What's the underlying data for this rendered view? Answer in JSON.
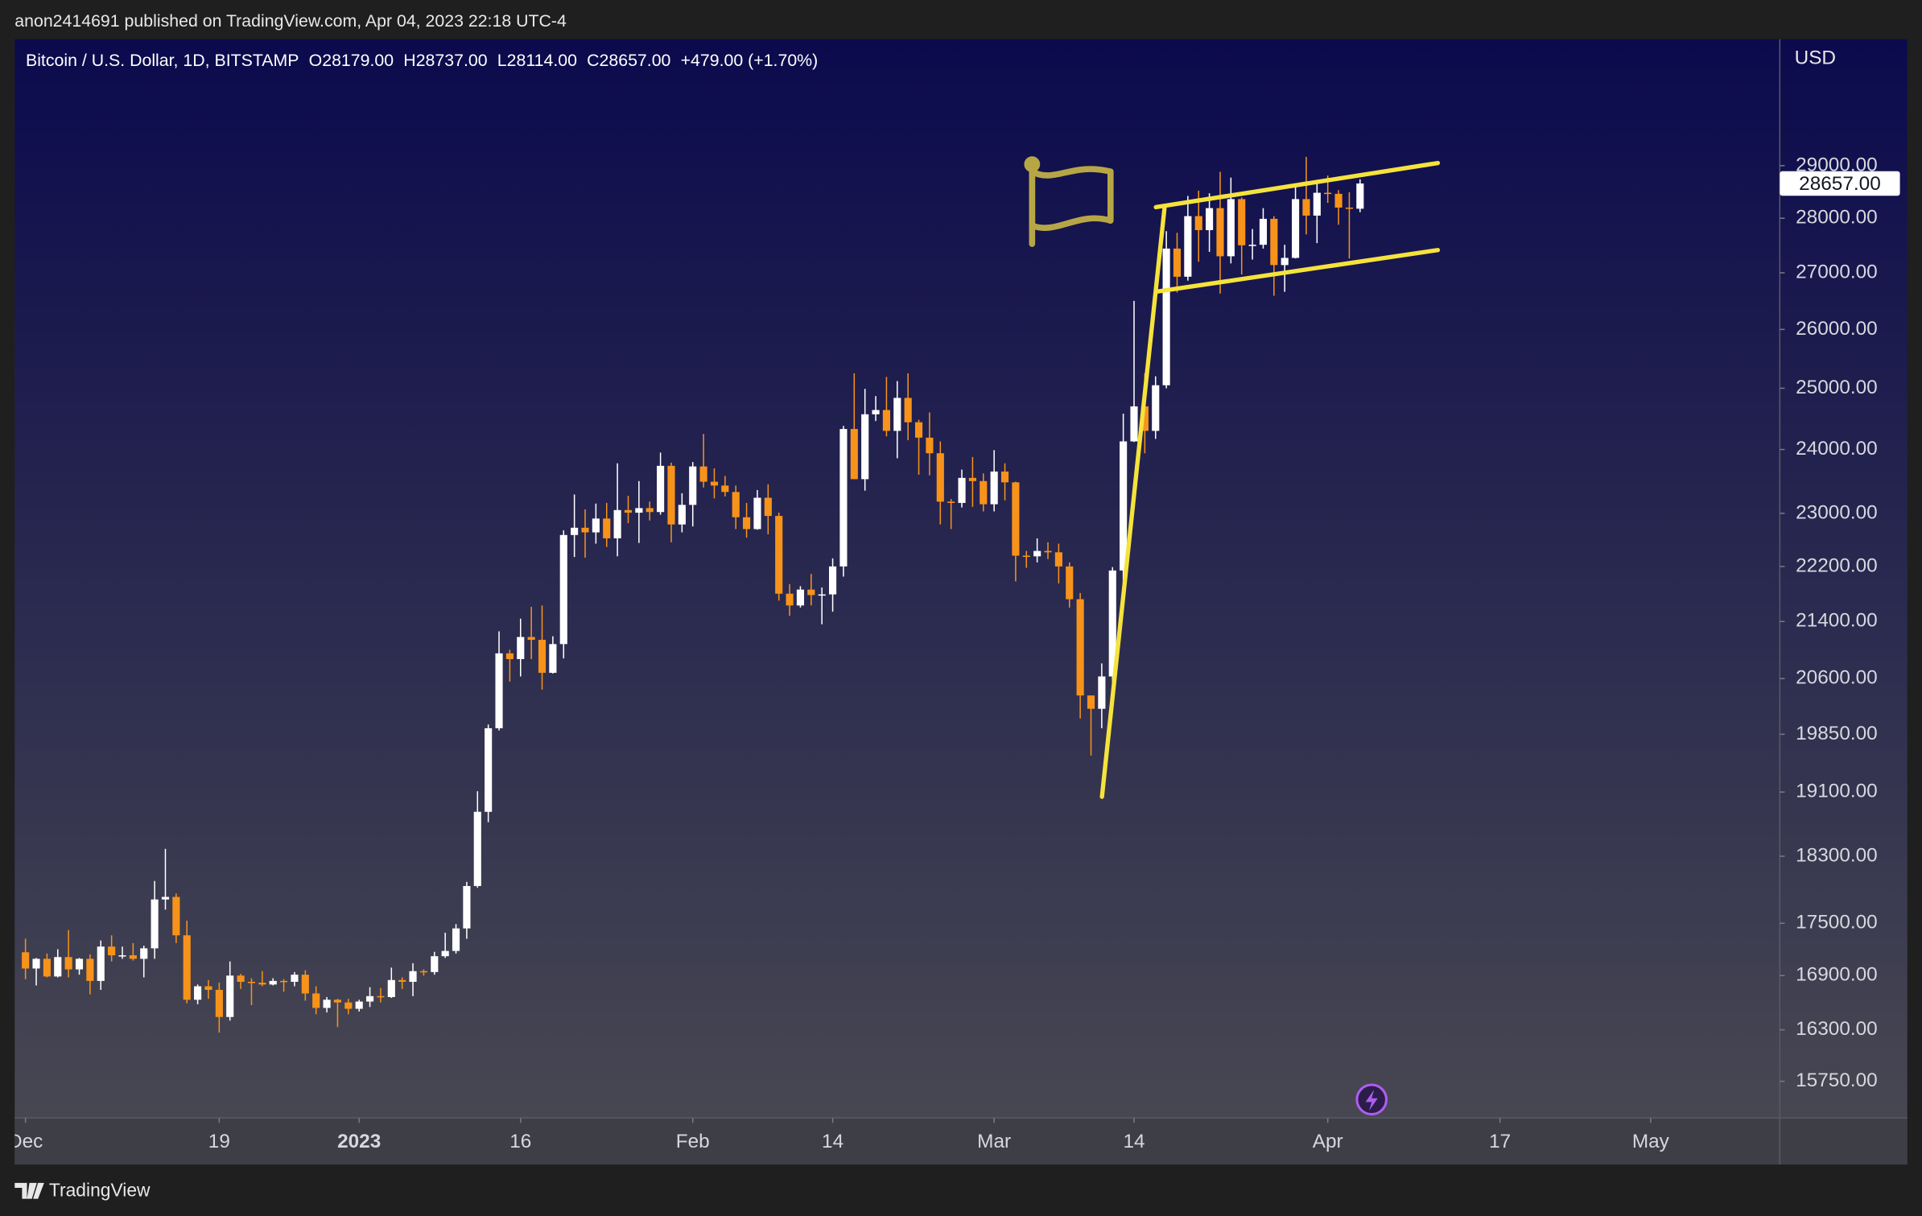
{
  "header": {
    "publisher": "anon2414691 published on TradingView.com, Apr 04, 2023 22:18 UTC-4"
  },
  "footer": {
    "brand": "TradingView"
  },
  "chart_data": {
    "type": "candlestick",
    "title": "Bitcoin / U.S. Dollar, 1D, BITSTAMP",
    "legend_values": [
      "O28179.00",
      "H28737.00",
      "L28114.00",
      "C28657.00",
      "+479.00 (+1.70%)"
    ],
    "currency": "USD",
    "up_color": "#ffffff",
    "down_color": "#f7931a",
    "log_scale": true,
    "grid": false,
    "xlim": [
      "2022-11-30",
      "2023-05-13"
    ],
    "ylim": [
      15370,
      31550
    ],
    "xticks": [
      {
        "value": "2022-12-01",
        "label": "Dec"
      },
      {
        "value": "2022-12-19",
        "label": "19"
      },
      {
        "value": "2023-01-01",
        "label": "2023"
      },
      {
        "value": "2023-01-16",
        "label": "16"
      },
      {
        "value": "2023-02-01",
        "label": "Feb"
      },
      {
        "value": "2023-02-14",
        "label": "14"
      },
      {
        "value": "2023-03-01",
        "label": "Mar"
      },
      {
        "value": "2023-03-14",
        "label": "14"
      },
      {
        "value": "2023-04-01",
        "label": "Apr"
      },
      {
        "value": "2023-04-17",
        "label": "17"
      },
      {
        "value": "2023-05-01",
        "label": "May"
      }
    ],
    "yticks": [
      {
        "value": 29000,
        "label": "29000.00"
      },
      {
        "value": 28000,
        "label": "28000.00"
      },
      {
        "value": 27000,
        "label": "27000.00"
      },
      {
        "value": 26000,
        "label": "26000.00"
      },
      {
        "value": 25000,
        "label": "25000.00"
      },
      {
        "value": 24000,
        "label": "24000.00"
      },
      {
        "value": 23000,
        "label": "23000.00"
      },
      {
        "value": 22200,
        "label": "22200.00"
      },
      {
        "value": 21400,
        "label": "21400.00"
      },
      {
        "value": 20600,
        "label": "20600.00"
      },
      {
        "value": 19850,
        "label": "19850.00"
      },
      {
        "value": 19100,
        "label": "19100.00"
      },
      {
        "value": 18300,
        "label": "18300.00"
      },
      {
        "value": 17500,
        "label": "17500.00"
      },
      {
        "value": 16900,
        "label": "16900.00"
      },
      {
        "value": 16300,
        "label": "16300.00"
      },
      {
        "value": 15750,
        "label": "15750.00"
      }
    ],
    "last_price": {
      "value": 28657,
      "label": "28657.00"
    },
    "x": [
      "2022-12-01",
      "2022-12-02",
      "2022-12-03",
      "2022-12-04",
      "2022-12-05",
      "2022-12-06",
      "2022-12-07",
      "2022-12-08",
      "2022-12-09",
      "2022-12-10",
      "2022-12-11",
      "2022-12-12",
      "2022-12-13",
      "2022-12-14",
      "2022-12-15",
      "2022-12-16",
      "2022-12-17",
      "2022-12-18",
      "2022-12-19",
      "2022-12-20",
      "2022-12-21",
      "2022-12-22",
      "2022-12-23",
      "2022-12-24",
      "2022-12-25",
      "2022-12-26",
      "2022-12-27",
      "2022-12-28",
      "2022-12-29",
      "2022-12-30",
      "2022-12-31",
      "2023-01-01",
      "2023-01-02",
      "2023-01-03",
      "2023-01-04",
      "2023-01-05",
      "2023-01-06",
      "2023-01-07",
      "2023-01-08",
      "2023-01-09",
      "2023-01-10",
      "2023-01-11",
      "2023-01-12",
      "2023-01-13",
      "2023-01-14",
      "2023-01-15",
      "2023-01-16",
      "2023-01-17",
      "2023-01-18",
      "2023-01-19",
      "2023-01-20",
      "2023-01-21",
      "2023-01-22",
      "2023-01-23",
      "2023-01-24",
      "2023-01-25",
      "2023-01-26",
      "2023-01-27",
      "2023-01-28",
      "2023-01-29",
      "2023-01-30",
      "2023-01-31",
      "2023-02-01",
      "2023-02-02",
      "2023-02-03",
      "2023-02-04",
      "2023-02-05",
      "2023-02-06",
      "2023-02-07",
      "2023-02-08",
      "2023-02-09",
      "2023-02-10",
      "2023-02-11",
      "2023-02-12",
      "2023-02-13",
      "2023-02-14",
      "2023-02-15",
      "2023-02-16",
      "2023-02-17",
      "2023-02-18",
      "2023-02-19",
      "2023-02-20",
      "2023-02-21",
      "2023-02-22",
      "2023-02-23",
      "2023-02-24",
      "2023-02-25",
      "2023-02-26",
      "2023-02-27",
      "2023-02-28",
      "2023-03-01",
      "2023-03-02",
      "2023-03-03",
      "2023-03-04",
      "2023-03-05",
      "2023-03-06",
      "2023-03-07",
      "2023-03-08",
      "2023-03-09",
      "2023-03-10",
      "2023-03-11",
      "2023-03-12",
      "2023-03-13",
      "2023-03-14",
      "2023-03-15",
      "2023-03-16",
      "2023-03-17",
      "2023-03-18",
      "2023-03-19",
      "2023-03-20",
      "2023-03-21",
      "2023-03-22",
      "2023-03-23",
      "2023-03-24",
      "2023-03-25",
      "2023-03-26",
      "2023-03-27",
      "2023-03-28",
      "2023-03-29",
      "2023-03-30",
      "2023-03-31",
      "2023-04-01",
      "2023-04-02",
      "2023-04-03",
      "2023-04-04"
    ],
    "open": [
      17165,
      16980,
      17090,
      16890,
      17110,
      16970,
      17090,
      16840,
      17230,
      17130,
      17130,
      17090,
      17210,
      17780,
      17810,
      17360,
      16630,
      16780,
      16740,
      16440,
      16900,
      16830,
      16820,
      16800,
      16840,
      16830,
      16910,
      16700,
      16540,
      16630,
      16600,
      16530,
      16610,
      16670,
      16660,
      16850,
      16830,
      16950,
      16940,
      17120,
      17180,
      17440,
      17940,
      18850,
      19930,
      20950,
      20870,
      21180,
      21140,
      20680,
      21080,
      22670,
      22780,
      22710,
      22920,
      22620,
      23050,
      23010,
      23080,
      23020,
      23740,
      22830,
      23130,
      23730,
      23490,
      23430,
      23330,
      22940,
      22760,
      23240,
      22960,
      21800,
      21630,
      21860,
      21780,
      21790,
      22200,
      24330,
      23530,
      24570,
      24640,
      24300,
      24840,
      24440,
      24190,
      23940,
      23180,
      23160,
      23550,
      23500,
      23140,
      23650,
      23480,
      22360,
      22350,
      22430,
      22410,
      22200,
      21720,
      20370,
      20190,
      20630,
      22140,
      24130,
      24700,
      24300,
      25050,
      27440,
      26930,
      28040,
      27780,
      28190,
      27300,
      28360,
      27500,
      27510,
      27990,
      27140,
      27270,
      28360,
      28050,
      28480,
      28460,
      28200,
      28179
    ],
    "high": [
      17320,
      17100,
      17150,
      17200,
      17420,
      17100,
      17140,
      17300,
      17360,
      17230,
      17270,
      17240,
      18000,
      18390,
      17850,
      17530,
      16800,
      16850,
      16820,
      17060,
      16920,
      16870,
      16950,
      16870,
      16860,
      16940,
      16960,
      16780,
      16660,
      16640,
      16640,
      16630,
      16770,
      16760,
      16990,
      16880,
      17040,
      16970,
      17170,
      17390,
      17490,
      17990,
      19110,
      19980,
      21260,
      21000,
      21440,
      21610,
      21630,
      21190,
      22740,
      23290,
      23060,
      23150,
      23160,
      23780,
      23270,
      23500,
      23180,
      23950,
      23790,
      23310,
      23800,
      24250,
      23700,
      23580,
      23430,
      23160,
      23360,
      23450,
      23010,
      21940,
      21910,
      22090,
      21890,
      22320,
      24380,
      25250,
      24990,
      24870,
      25190,
      25120,
      25250,
      24480,
      24600,
      24130,
      23220,
      23680,
      23880,
      23620,
      23990,
      23780,
      23490,
      22430,
      22620,
      22560,
      22540,
      22260,
      21810,
      20370,
      20810,
      22190,
      24580,
      26500,
      25250,
      25200,
      27760,
      27730,
      28420,
      28520,
      28470,
      28880,
      28770,
      28390,
      27800,
      28190,
      28040,
      27510,
      28660,
      29170,
      28650,
      28810,
      28530,
      28490,
      28737
    ],
    "low": [
      16860,
      16790,
      16880,
      16880,
      16880,
      16910,
      16690,
      16740,
      17060,
      17090,
      17070,
      16880,
      17090,
      17660,
      17270,
      16590,
      16580,
      16640,
      16270,
      16400,
      16750,
      16570,
      16780,
      16790,
      16720,
      16780,
      16620,
      16470,
      16490,
      16330,
      16470,
      16500,
      16550,
      16600,
      16650,
      16750,
      16670,
      16900,
      16910,
      17100,
      17150,
      17320,
      17920,
      18720,
      19900,
      20560,
      20630,
      20870,
      20450,
      20670,
      20880,
      22340,
      22330,
      22540,
      22490,
      22350,
      22850,
      22550,
      22890,
      22980,
      22560,
      22710,
      22800,
      23400,
      23230,
      23260,
      22760,
      22630,
      22750,
      22680,
      21700,
      21480,
      21600,
      21630,
      21360,
      21540,
      22050,
      23560,
      23350,
      24460,
      24210,
      23860,
      24150,
      23600,
      23590,
      22830,
      22760,
      23090,
      23100,
      23030,
      23030,
      23200,
      21980,
      22180,
      22260,
      22310,
      21950,
      21600,
      20060,
      19570,
      19930,
      20440,
      21880,
      24120,
      23940,
      24170,
      25000,
      26650,
      26860,
      27200,
      27380,
      26630,
      27170,
      26970,
      27240,
      27440,
      26590,
      26660,
      27260,
      27700,
      27540,
      28290,
      27880,
      27260,
      28114
    ],
    "close": [
      16980,
      17090,
      16890,
      17110,
      16970,
      17090,
      16840,
      17230,
      17130,
      17130,
      17090,
      17210,
      17780,
      17810,
      17360,
      16630,
      16780,
      16740,
      16440,
      16900,
      16830,
      16820,
      16800,
      16840,
      16830,
      16910,
      16700,
      16540,
      16630,
      16600,
      16530,
      16610,
      16670,
      16660,
      16850,
      16830,
      16950,
      16940,
      17120,
      17180,
      17440,
      17940,
      18850,
      19930,
      20950,
      20870,
      21180,
      21140,
      20680,
      21080,
      22670,
      22780,
      22710,
      22920,
      22620,
      23050,
      23010,
      23080,
      23020,
      23740,
      22830,
      23130,
      23730,
      23490,
      23430,
      23330,
      22940,
      22760,
      23240,
      22960,
      21800,
      21630,
      21860,
      21780,
      21790,
      22200,
      24330,
      23530,
      24570,
      24640,
      24300,
      24840,
      24440,
      24190,
      23940,
      23180,
      23160,
      23550,
      23500,
      23140,
      23650,
      23480,
      22360,
      22350,
      22430,
      22410,
      22200,
      21720,
      20370,
      20190,
      20630,
      22140,
      24130,
      24700,
      24300,
      25050,
      27440,
      26930,
      28040,
      27780,
      28190,
      27300,
      28360,
      27500,
      27510,
      27990,
      27140,
      27270,
      28360,
      28050,
      28480,
      28460,
      28200,
      28179,
      28657
    ]
  }
}
